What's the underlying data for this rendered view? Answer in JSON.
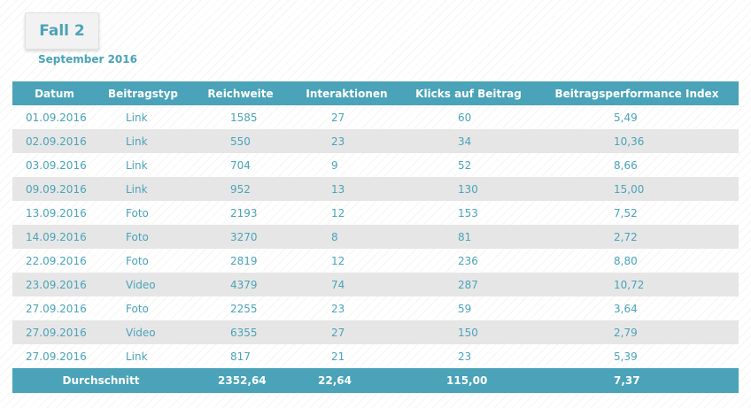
{
  "title": "Fall 2",
  "subtitle": "September 2016",
  "table": {
    "headers": [
      "Datum",
      "Beitragstyp",
      "Reichweite",
      "Interaktionen",
      "Klicks auf Beitrag",
      "Beitragsperformance Index"
    ],
    "rows": [
      [
        "01.09.2016",
        "Link",
        "1585",
        "27",
        "60",
        "5,49"
      ],
      [
        "02.09.2016",
        "Link",
        "550",
        "23",
        "34",
        "10,36"
      ],
      [
        "03.09.2016",
        "Link",
        "704",
        "9",
        "52",
        "8,66"
      ],
      [
        "09.09.2016",
        "Link",
        "952",
        "13",
        "130",
        "15,00"
      ],
      [
        "13.09.2016",
        "Foto",
        "2193",
        "12",
        "153",
        "7,52"
      ],
      [
        "14.09.2016",
        "Foto",
        "3270",
        "8",
        "81",
        "2,72"
      ],
      [
        "22.09.2016",
        "Foto",
        "2819",
        "12",
        "236",
        "8,80"
      ],
      [
        "23.09.2016",
        "Video",
        "4379",
        "74",
        "287",
        "10,72"
      ],
      [
        "27.09.2016",
        "Foto",
        "2255",
        "23",
        "59",
        "3,64"
      ],
      [
        "27.09.2016",
        "Video",
        "6355",
        "27",
        "150",
        "2,79"
      ],
      [
        "27.09.2016",
        "Link",
        "817",
        "21",
        "23",
        "5,39"
      ]
    ],
    "footer": {
      "label": "Durchschnitt",
      "reach": "2352,64",
      "interactions": "22,64",
      "clicks": "115,00",
      "index": "7,37"
    }
  },
  "colors": {
    "accent": "#4aa3b8",
    "row_alt": "#e6e6e6",
    "header_text": "#ffffff"
  }
}
